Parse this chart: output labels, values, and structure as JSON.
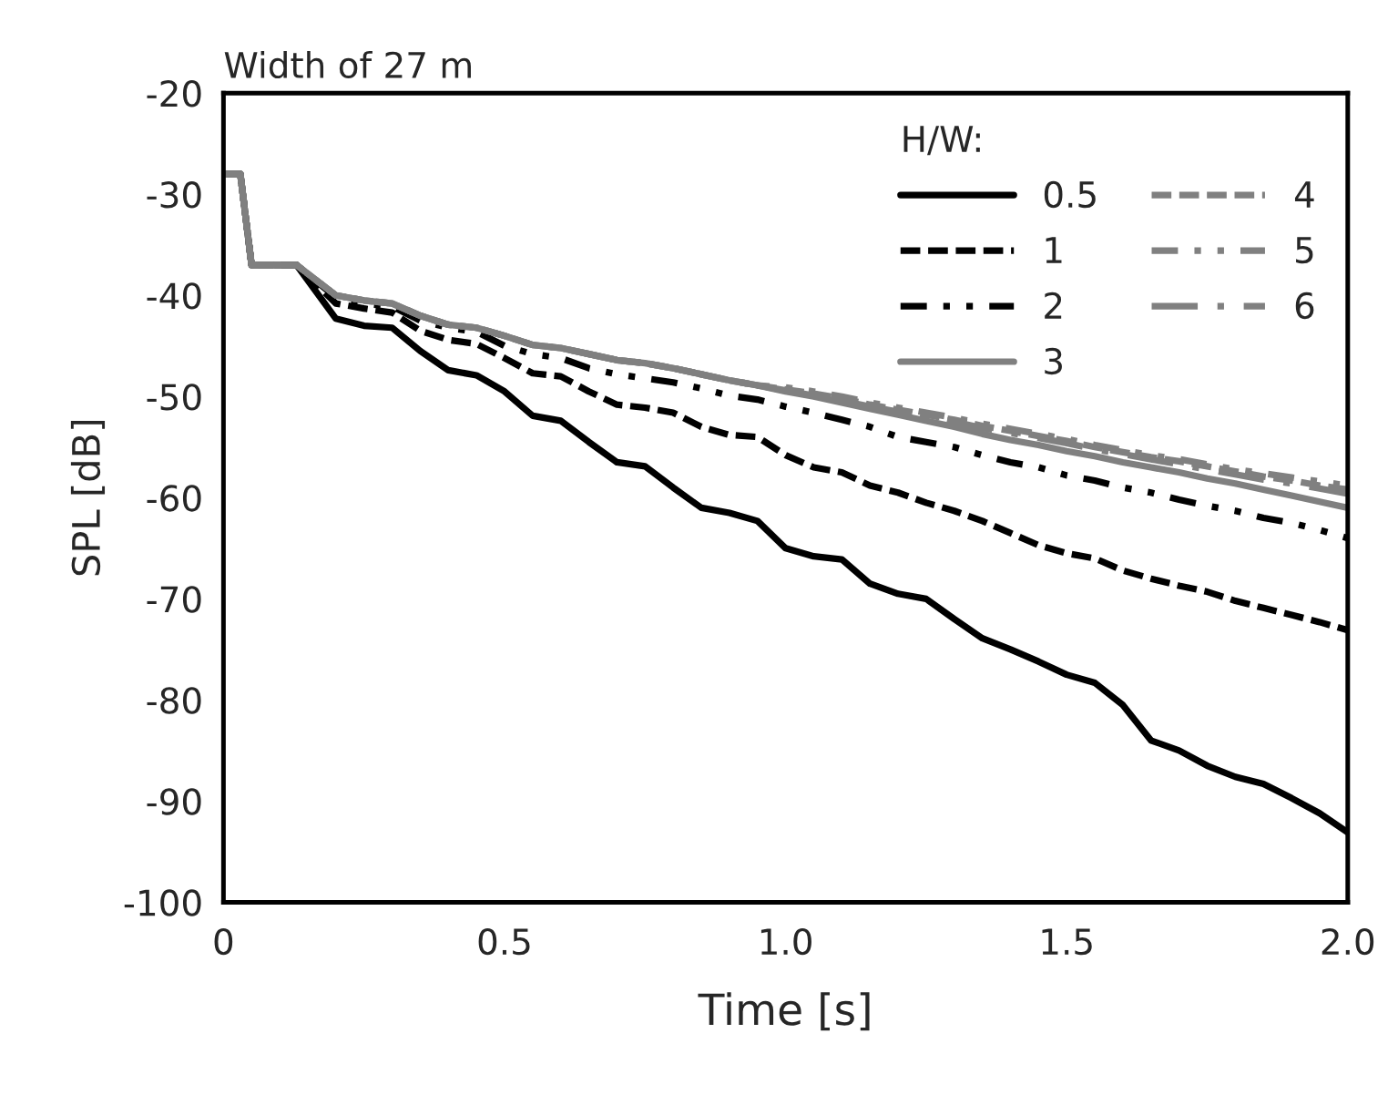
{
  "chart_data": {
    "type": "line",
    "title": "Width of 27 m",
    "xlabel": "Time [s]",
    "ylabel": "SPL [dB]",
    "legend_title": "H/W:",
    "legend": "top right",
    "grid": false,
    "x": [
      0,
      0.03,
      0.05,
      0.13,
      0.2,
      0.25,
      0.3,
      0.35,
      0.4,
      0.45,
      0.5,
      0.55,
      0.6,
      0.65,
      0.7,
      0.75,
      0.8,
      0.85,
      0.9,
      0.95,
      1.0,
      1.05,
      1.1,
      1.15,
      1.2,
      1.25,
      1.3,
      1.35,
      1.4,
      1.45,
      1.5,
      1.55,
      1.6,
      1.65,
      1.7,
      1.75,
      1.8,
      1.85,
      1.9,
      1.95,
      2.0
    ],
    "xlim": [
      0,
      2
    ],
    "xticks": [
      0,
      0.5,
      {
        "value": 1,
        "label": "1.0"
      },
      1.5,
      {
        "value": 2,
        "label": "2.0"
      }
    ],
    "ylim": [
      -100,
      -20
    ],
    "yticks": [
      -100,
      -90,
      -80,
      -70,
      -60,
      -50,
      -40,
      -30,
      -20
    ],
    "series": [
      {
        "name": "0.5",
        "color": "#000000",
        "line_style": "solid",
        "values": [
          -28,
          -28,
          -37,
          -37,
          -42.3,
          -43,
          -43.2,
          -45.5,
          -47.4,
          -47.9,
          -49.5,
          -51.9,
          -52.4,
          -54.5,
          -56.5,
          -56.9,
          -59,
          -61,
          -61.5,
          -62.3,
          -65,
          -65.8,
          -66.1,
          -68.5,
          -69.5,
          -70,
          -72,
          -73.9,
          -75,
          -76.2,
          -77.5,
          -78.3,
          -80.5,
          -84,
          -85,
          -86.5,
          -87.6,
          -88.3,
          -89.7,
          -91.2,
          -93.1
        ]
      },
      {
        "name": "1",
        "color": "#000000",
        "line_style": "dashed",
        "values": [
          -28,
          -28,
          -37,
          -37,
          -40.8,
          -41.3,
          -41.7,
          -43.5,
          -44.4,
          -44.8,
          -46.2,
          -47.7,
          -48,
          -49.5,
          -50.8,
          -51.1,
          -51.6,
          -53,
          -53.8,
          -54,
          -55.8,
          -57,
          -57.5,
          -58.8,
          -59.5,
          -60.5,
          -61.3,
          -62.3,
          -63.5,
          -64.7,
          -65.5,
          -66,
          -67.2,
          -68,
          -68.7,
          -69.3,
          -70.2,
          -70.9,
          -71.6,
          -72.3,
          -73.1
        ]
      },
      {
        "name": "2",
        "color": "#000000",
        "line_style": "dashdotdot",
        "values": [
          -28,
          -28,
          -37,
          -37,
          -40.2,
          -40.8,
          -41.1,
          -42.5,
          -43.2,
          -43.6,
          -45,
          -45.8,
          -46.2,
          -47.2,
          -47.8,
          -48.2,
          -48.6,
          -49.2,
          -49.9,
          -50.3,
          -51,
          -51.6,
          -52.3,
          -53,
          -54,
          -54.5,
          -55,
          -55.8,
          -56.5,
          -57,
          -57.8,
          -58.3,
          -59,
          -59.5,
          -60.2,
          -60.8,
          -61.3,
          -62,
          -62.5,
          -63.2,
          -64.0
        ]
      },
      {
        "name": "3",
        "color": "#808080",
        "line_style": "solid",
        "values": [
          -28,
          -28,
          -37,
          -37,
          -40,
          -40.5,
          -40.8,
          -42,
          -42.9,
          -43.2,
          -44,
          -44.9,
          -45.2,
          -45.8,
          -46.4,
          -46.7,
          -47.2,
          -47.8,
          -48.4,
          -48.9,
          -49.5,
          -50,
          -50.6,
          -51.2,
          -51.8,
          -52.4,
          -53,
          -53.7,
          -54.3,
          -54.8,
          -55.4,
          -55.9,
          -56.5,
          -57,
          -57.5,
          -58.1,
          -58.6,
          -59.2,
          -59.8,
          -60.4,
          -61.0
        ]
      },
      {
        "name": "4",
        "color": "#808080",
        "line_style": "dashed",
        "values": [
          -28,
          -28,
          -37,
          -37,
          -40,
          -40.5,
          -40.8,
          -42,
          -42.9,
          -43.2,
          -44,
          -44.9,
          -45.2,
          -45.8,
          -46.4,
          -46.7,
          -47.2,
          -47.8,
          -48.4,
          -48.9,
          -49.3,
          -49.7,
          -50.2,
          -50.8,
          -51.3,
          -51.8,
          -52.3,
          -52.9,
          -53.4,
          -53.9,
          -54.4,
          -55,
          -55.5,
          -56,
          -56.4,
          -56.9,
          -57.4,
          -57.9,
          -58.3,
          -58.8,
          -59.2
        ]
      },
      {
        "name": "5",
        "color": "#808080",
        "line_style": "dashdotdot",
        "values": [
          -28,
          -28,
          -37,
          -37,
          -40,
          -40.5,
          -40.8,
          -42,
          -42.9,
          -43.2,
          -44,
          -44.9,
          -45.2,
          -45.8,
          -46.4,
          -46.7,
          -47.2,
          -47.8,
          -48.4,
          -48.9,
          -49.1,
          -49.5,
          -50,
          -50.6,
          -51.1,
          -51.6,
          -52.1,
          -52.7,
          -53.2,
          -53.7,
          -54.2,
          -54.8,
          -55.3,
          -55.8,
          -56.2,
          -56.7,
          -57.2,
          -57.6,
          -58,
          -58.4,
          -58.8
        ]
      },
      {
        "name": "6",
        "color": "#808080",
        "line_style": "longdashdot",
        "values": [
          -28,
          -28,
          -37,
          -37,
          -40,
          -40.5,
          -40.8,
          -42,
          -42.9,
          -43.2,
          -44,
          -44.9,
          -45.2,
          -45.8,
          -46.4,
          -46.7,
          -47.2,
          -47.8,
          -48.4,
          -48.9,
          -49.4,
          -49.9,
          -50.4,
          -51,
          -51.5,
          -52,
          -52.5,
          -53.1,
          -53.6,
          -54.1,
          -54.6,
          -55.2,
          -55.7,
          -56.2,
          -56.7,
          -57.2,
          -57.7,
          -58.2,
          -58.6,
          -59.1,
          -59.6
        ]
      }
    ]
  }
}
